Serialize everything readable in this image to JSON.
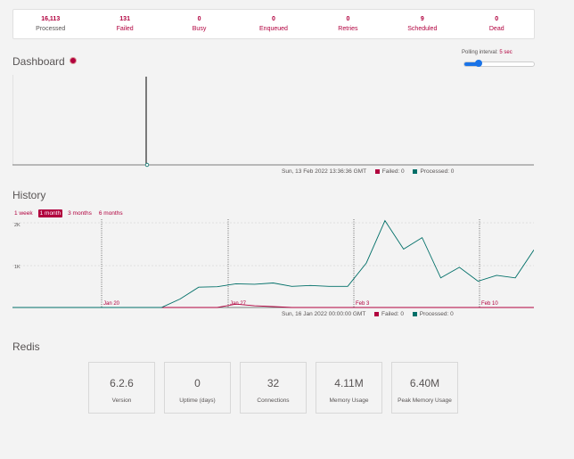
{
  "summary": [
    {
      "value": "16,113",
      "label": "Processed"
    },
    {
      "value": "131",
      "label": "Failed"
    },
    {
      "value": "0",
      "label": "Busy"
    },
    {
      "value": "0",
      "label": "Enqueued"
    },
    {
      "value": "0",
      "label": "Retries"
    },
    {
      "value": "9",
      "label": "Scheduled"
    },
    {
      "value": "0",
      "label": "Dead"
    }
  ],
  "dashboard": {
    "title": "Dashboard",
    "polling_label": "Polling interval:",
    "polling_value": "5 sec",
    "legend_time": "Sun, 13 Feb 2022 13:36:36 GMT",
    "failed_label": "Failed: 0",
    "processed_label": "Processed: 0"
  },
  "history": {
    "title": "History",
    "ranges": [
      "1 week",
      "1 month",
      "3 months",
      "6 months"
    ],
    "active_range": "1 month",
    "legend_time": "Sun, 16 Jan 2022 00:00:00 GMT",
    "failed_label": "Failed: 0",
    "processed_label": "Processed: 0"
  },
  "redis": {
    "title": "Redis",
    "stats": [
      {
        "value": "6.2.6",
        "label": "Version"
      },
      {
        "value": "0",
        "label": "Uptime (days)"
      },
      {
        "value": "32",
        "label": "Connections"
      },
      {
        "value": "4.11M",
        "label": "Memory Usage"
      },
      {
        "value": "6.40M",
        "label": "Peak Memory Usage"
      }
    ]
  },
  "colors": {
    "failed": "#b1003e",
    "processed": "#006f68"
  },
  "chart_data": [
    {
      "type": "line",
      "title": "",
      "series": [
        {
          "name": "Failed",
          "values": [
            0,
            0,
            0,
            0,
            0,
            0,
            0,
            0,
            0,
            0,
            0,
            0,
            0,
            0,
            0,
            0,
            0,
            0,
            0,
            0,
            0,
            0,
            0,
            0,
            0,
            0,
            0,
            0,
            0,
            0
          ]
        },
        {
          "name": "Processed",
          "values": [
            0,
            0,
            0,
            0,
            0,
            0,
            0,
            0,
            0,
            0,
            0,
            0,
            0,
            0,
            0,
            0,
            0,
            0,
            0,
            0,
            0,
            0,
            0,
            0,
            0,
            0,
            0,
            0,
            0,
            0
          ]
        }
      ]
    },
    {
      "type": "line",
      "x": [
        "Jan 16",
        "Jan 17",
        "Jan 18",
        "Jan 19",
        "Jan 20",
        "Jan 21",
        "Jan 22",
        "Jan 23",
        "Jan 24",
        "Jan 25",
        "Jan 26",
        "Jan 27",
        "Jan 28",
        "Jan 29",
        "Jan 30",
        "Jan 31",
        "Feb 1",
        "Feb 2",
        "Feb 3",
        "Feb 4",
        "Feb 5",
        "Feb 6",
        "Feb 7",
        "Feb 8",
        "Feb 9",
        "Feb 10",
        "Feb 11",
        "Feb 12",
        "Feb 13"
      ],
      "x_ticks": [
        "Jan 20",
        "Jan 27",
        "Feb 3",
        "Feb 10"
      ],
      "y_ticks": [
        "1K",
        "2K"
      ],
      "ylim": [
        0,
        2200
      ],
      "series": [
        {
          "name": "Processed",
          "values": [
            0,
            0,
            0,
            0,
            0,
            0,
            0,
            0,
            0,
            200,
            480,
            490,
            560,
            550,
            580,
            500,
            520,
            500,
            500,
            1050,
            2050,
            1380,
            1650,
            700,
            950,
            620,
            760,
            700,
            1360
          ]
        },
        {
          "name": "Failed",
          "values": [
            0,
            0,
            0,
            0,
            0,
            0,
            0,
            0,
            0,
            0,
            0,
            0,
            80,
            40,
            20,
            0,
            0,
            0,
            0,
            0,
            0,
            0,
            0,
            0,
            0,
            0,
            0,
            0,
            0
          ]
        }
      ]
    }
  ]
}
